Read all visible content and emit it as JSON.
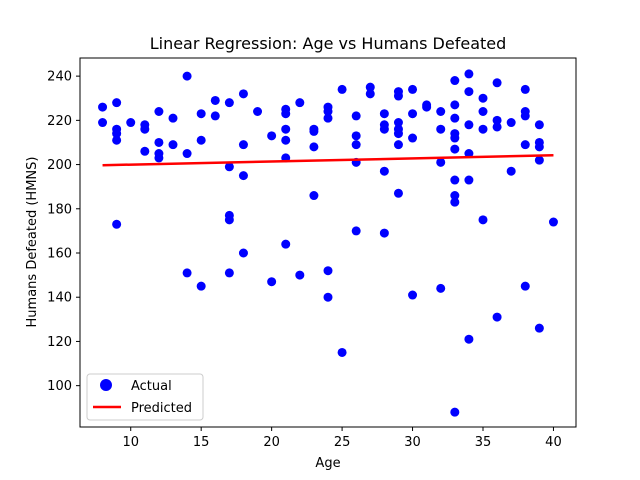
{
  "chart_data": {
    "type": "scatter",
    "title": "Linear Regression: Age vs Humans Defeated",
    "xlabel": "Age",
    "ylabel": "Humans Defeated (HMNS)",
    "xlim": [
      6.4,
      41.6
    ],
    "ylim": [
      81.3,
      248.2
    ],
    "xticks": [
      10,
      15,
      20,
      25,
      30,
      35,
      40
    ],
    "yticks": [
      100,
      120,
      140,
      160,
      180,
      200,
      220,
      240
    ],
    "grid": false,
    "legend_position": "lower-left",
    "series": [
      {
        "name": "Actual",
        "kind": "scatter",
        "color": "#0000ff",
        "points": [
          [
            8,
            226
          ],
          [
            8,
            219
          ],
          [
            9,
            228
          ],
          [
            9,
            216
          ],
          [
            9,
            214
          ],
          [
            9,
            211
          ],
          [
            9,
            173
          ],
          [
            10,
            219
          ],
          [
            11,
            218
          ],
          [
            11,
            216
          ],
          [
            11,
            206
          ],
          [
            12,
            224
          ],
          [
            12,
            210
          ],
          [
            12,
            205
          ],
          [
            12,
            203
          ],
          [
            13,
            221
          ],
          [
            13,
            209
          ],
          [
            14,
            240
          ],
          [
            14,
            205
          ],
          [
            14,
            151
          ],
          [
            15,
            223
          ],
          [
            15,
            211
          ],
          [
            15,
            145
          ],
          [
            16,
            229
          ],
          [
            16,
            222
          ],
          [
            17,
            228
          ],
          [
            17,
            199
          ],
          [
            17,
            177
          ],
          [
            17,
            175
          ],
          [
            17,
            151
          ],
          [
            18,
            232
          ],
          [
            18,
            209
          ],
          [
            18,
            195
          ],
          [
            18,
            160
          ],
          [
            19,
            224
          ],
          [
            20,
            213
          ],
          [
            20,
            147
          ],
          [
            21,
            225
          ],
          [
            21,
            223
          ],
          [
            21,
            216
          ],
          [
            21,
            211
          ],
          [
            21,
            203
          ],
          [
            21,
            164
          ],
          [
            22,
            228
          ],
          [
            22,
            150
          ],
          [
            23,
            216
          ],
          [
            23,
            215
          ],
          [
            23,
            208
          ],
          [
            23,
            186
          ],
          [
            24,
            226
          ],
          [
            24,
            224
          ],
          [
            24,
            221
          ],
          [
            24,
            152
          ],
          [
            24,
            140
          ],
          [
            25,
            234
          ],
          [
            25,
            115
          ],
          [
            26,
            222
          ],
          [
            26,
            213
          ],
          [
            26,
            209
          ],
          [
            26,
            201
          ],
          [
            26,
            170
          ],
          [
            27,
            235
          ],
          [
            27,
            232
          ],
          [
            28,
            223
          ],
          [
            28,
            218
          ],
          [
            28,
            216
          ],
          [
            28,
            197
          ],
          [
            28,
            169
          ],
          [
            29,
            233
          ],
          [
            29,
            231
          ],
          [
            29,
            219
          ],
          [
            29,
            216
          ],
          [
            29,
            214
          ],
          [
            29,
            209
          ],
          [
            29,
            187
          ],
          [
            30,
            234
          ],
          [
            30,
            223
          ],
          [
            30,
            212
          ],
          [
            30,
            141
          ],
          [
            31,
            227
          ],
          [
            31,
            226
          ],
          [
            32,
            224
          ],
          [
            32,
            216
          ],
          [
            32,
            201
          ],
          [
            32,
            144
          ],
          [
            33,
            238
          ],
          [
            33,
            227
          ],
          [
            33,
            221
          ],
          [
            33,
            214
          ],
          [
            33,
            212
          ],
          [
            33,
            207
          ],
          [
            33,
            193
          ],
          [
            33,
            186
          ],
          [
            33,
            183
          ],
          [
            33,
            88
          ],
          [
            34,
            241
          ],
          [
            34,
            233
          ],
          [
            34,
            218
          ],
          [
            34,
            205
          ],
          [
            34,
            193
          ],
          [
            34,
            121
          ],
          [
            35,
            230
          ],
          [
            35,
            224
          ],
          [
            35,
            216
          ],
          [
            35,
            175
          ],
          [
            36,
            237
          ],
          [
            36,
            220
          ],
          [
            36,
            217
          ],
          [
            36,
            131
          ],
          [
            37,
            219
          ],
          [
            37,
            197
          ],
          [
            38,
            234
          ],
          [
            38,
            224
          ],
          [
            38,
            222
          ],
          [
            38,
            209
          ],
          [
            38,
            145
          ],
          [
            39,
            218
          ],
          [
            39,
            210
          ],
          [
            39,
            208
          ],
          [
            39,
            202
          ],
          [
            39,
            126
          ],
          [
            40,
            174
          ]
        ]
      },
      {
        "name": "Predicted",
        "kind": "line",
        "color": "#ff0000",
        "points": [
          [
            8,
            199.7
          ],
          [
            40,
            204.2
          ]
        ]
      }
    ]
  }
}
